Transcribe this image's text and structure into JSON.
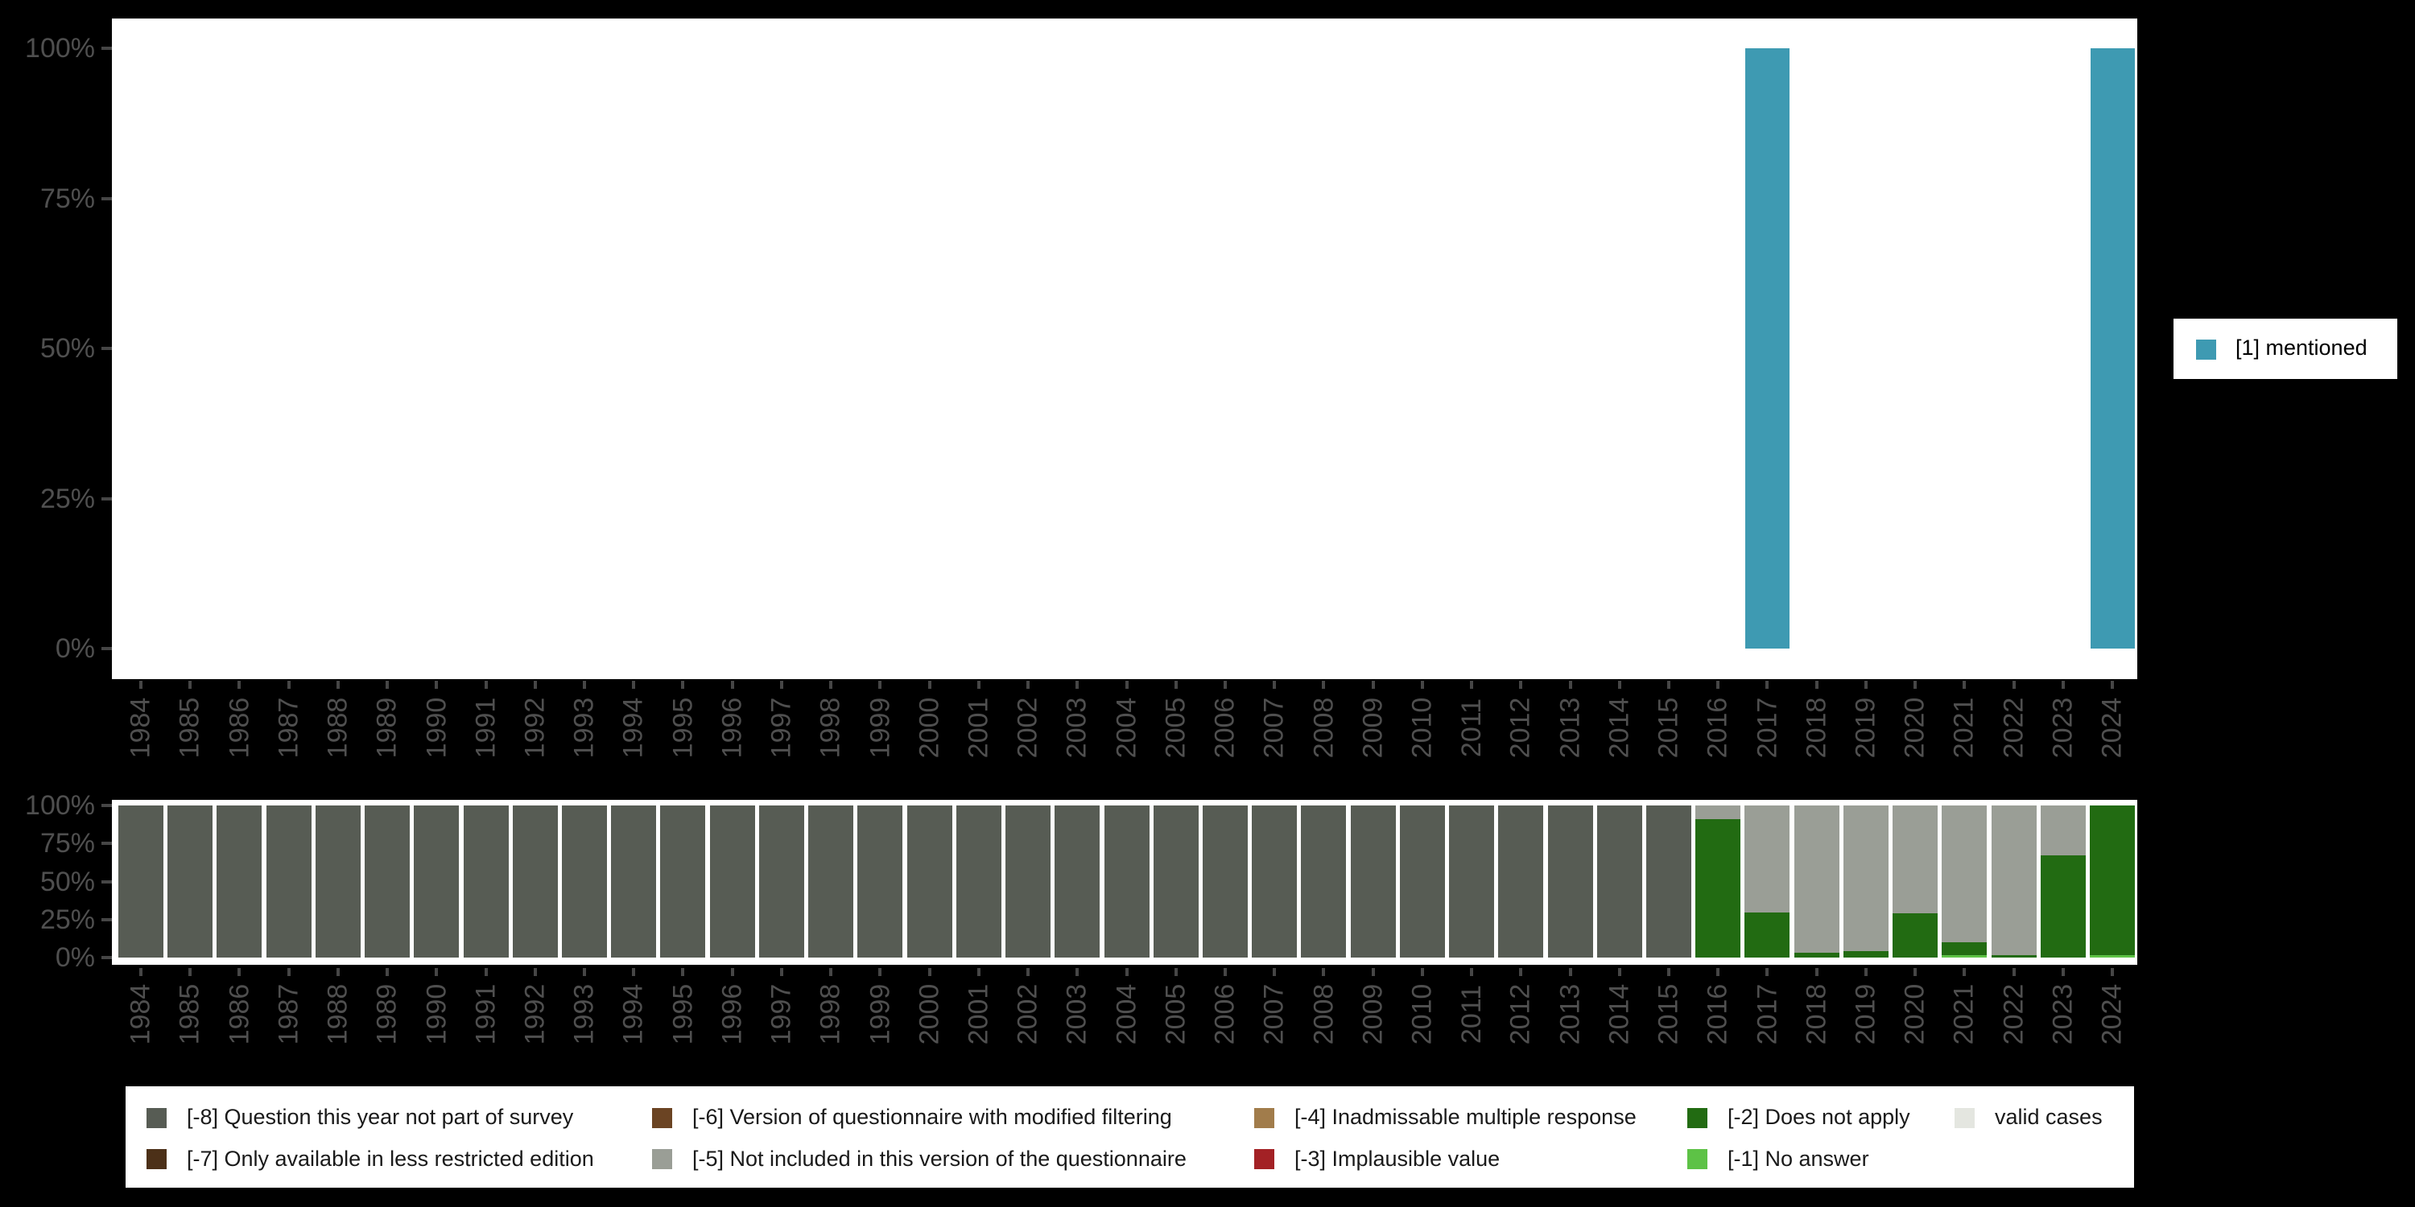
{
  "figure": {
    "background": "#000000",
    "panel_background": "#ffffff",
    "description": "Variable availability over survey years: share of respondents mentioning the item (top) and composition of missing-value codes (bottom)"
  },
  "axis": {
    "text_color": "#4f4f4f",
    "tick_color": "#464646",
    "y_tick_labels": [
      "0%",
      "25%",
      "50%",
      "75%",
      "100%"
    ],
    "y_tick_pcts": [
      0,
      25,
      50,
      75,
      100
    ]
  },
  "years": [
    1984,
    1985,
    1986,
    1987,
    1988,
    1989,
    1990,
    1991,
    1992,
    1993,
    1994,
    1995,
    1996,
    1997,
    1998,
    1999,
    2000,
    2001,
    2002,
    2003,
    2004,
    2005,
    2006,
    2007,
    2008,
    2009,
    2010,
    2011,
    2012,
    2013,
    2014,
    2015,
    2016,
    2017,
    2018,
    2019,
    2020,
    2021,
    2022,
    2023,
    2024
  ],
  "chart_data": [
    {
      "type": "bar",
      "title": "",
      "xlabel": "",
      "ylabel": "",
      "ylim": [
        0,
        100
      ],
      "grid": false,
      "legend_position": "right",
      "categories_ref": "years",
      "series": [
        {
          "name": "[1] mentioned",
          "color": "#3E9AB2",
          "values": [
            0,
            0,
            0,
            0,
            0,
            0,
            0,
            0,
            0,
            0,
            0,
            0,
            0,
            0,
            0,
            0,
            0,
            0,
            0,
            0,
            0,
            0,
            0,
            0,
            0,
            0,
            0,
            0,
            0,
            0,
            0,
            0,
            0,
            100,
            0,
            0,
            0,
            0,
            0,
            0,
            100
          ]
        }
      ]
    },
    {
      "type": "stacked-bar",
      "title": "",
      "xlabel": "",
      "ylabel": "",
      "ylim": [
        0,
        100
      ],
      "grid": false,
      "legend_position": "bottom",
      "categories_ref": "years",
      "stacking_order_bottom_to_top": [
        "valid",
        "-1",
        "-2",
        "-3",
        "-4",
        "-5",
        "-6",
        "-7",
        "-8"
      ],
      "stacks": [
        {
          "year": 1984,
          "segments": [
            [
              "-8",
              100
            ]
          ]
        },
        {
          "year": 1985,
          "segments": [
            [
              "-8",
              100
            ]
          ]
        },
        {
          "year": 1986,
          "segments": [
            [
              "-8",
              100
            ]
          ]
        },
        {
          "year": 1987,
          "segments": [
            [
              "-8",
              100
            ]
          ]
        },
        {
          "year": 1988,
          "segments": [
            [
              "-8",
              100
            ]
          ]
        },
        {
          "year": 1989,
          "segments": [
            [
              "-8",
              100
            ]
          ]
        },
        {
          "year": 1990,
          "segments": [
            [
              "-8",
              100
            ]
          ]
        },
        {
          "year": 1991,
          "segments": [
            [
              "-8",
              100
            ]
          ]
        },
        {
          "year": 1992,
          "segments": [
            [
              "-8",
              100
            ]
          ]
        },
        {
          "year": 1993,
          "segments": [
            [
              "-8",
              100
            ]
          ]
        },
        {
          "year": 1994,
          "segments": [
            [
              "-8",
              100
            ]
          ]
        },
        {
          "year": 1995,
          "segments": [
            [
              "-8",
              100
            ]
          ]
        },
        {
          "year": 1996,
          "segments": [
            [
              "-8",
              100
            ]
          ]
        },
        {
          "year": 1997,
          "segments": [
            [
              "-8",
              100
            ]
          ]
        },
        {
          "year": 1998,
          "segments": [
            [
              "-8",
              100
            ]
          ]
        },
        {
          "year": 1999,
          "segments": [
            [
              "-8",
              100
            ]
          ]
        },
        {
          "year": 2000,
          "segments": [
            [
              "-8",
              100
            ]
          ]
        },
        {
          "year": 2001,
          "segments": [
            [
              "-8",
              100
            ]
          ]
        },
        {
          "year": 2002,
          "segments": [
            [
              "-8",
              100
            ]
          ]
        },
        {
          "year": 2003,
          "segments": [
            [
              "-8",
              100
            ]
          ]
        },
        {
          "year": 2004,
          "segments": [
            [
              "-8",
              100
            ]
          ]
        },
        {
          "year": 2005,
          "segments": [
            [
              "-8",
              100
            ]
          ]
        },
        {
          "year": 2006,
          "segments": [
            [
              "-8",
              100
            ]
          ]
        },
        {
          "year": 2007,
          "segments": [
            [
              "-8",
              100
            ]
          ]
        },
        {
          "year": 2008,
          "segments": [
            [
              "-8",
              100
            ]
          ]
        },
        {
          "year": 2009,
          "segments": [
            [
              "-8",
              100
            ]
          ]
        },
        {
          "year": 2010,
          "segments": [
            [
              "-8",
              100
            ]
          ]
        },
        {
          "year": 2011,
          "segments": [
            [
              "-8",
              100
            ]
          ]
        },
        {
          "year": 2012,
          "segments": [
            [
              "-8",
              100
            ]
          ]
        },
        {
          "year": 2013,
          "segments": [
            [
              "-8",
              100
            ]
          ]
        },
        {
          "year": 2014,
          "segments": [
            [
              "-8",
              100
            ]
          ]
        },
        {
          "year": 2015,
          "segments": [
            [
              "-8",
              100
            ]
          ]
        },
        {
          "year": 2016,
          "segments": [
            [
              "-2",
              91
            ],
            [
              "-5",
              9
            ]
          ]
        },
        {
          "year": 2017,
          "segments": [
            [
              "-2",
              29.5
            ],
            [
              "-5",
              70.5
            ]
          ]
        },
        {
          "year": 2018,
          "segments": [
            [
              "-2",
              3
            ],
            [
              "-5",
              97
            ]
          ]
        },
        {
          "year": 2019,
          "segments": [
            [
              "-2",
              4
            ],
            [
              "-5",
              96
            ]
          ]
        },
        {
          "year": 2020,
          "segments": [
            [
              "-2",
              29
            ],
            [
              "-5",
              71
            ]
          ]
        },
        {
          "year": 2021,
          "segments": [
            [
              "-1",
              1.5
            ],
            [
              "-2",
              8.5
            ],
            [
              "-5",
              90
            ]
          ]
        },
        {
          "year": 2022,
          "segments": [
            [
              "-2",
              1.5
            ],
            [
              "-5",
              98.5
            ]
          ]
        },
        {
          "year": 2023,
          "segments": [
            [
              "-2",
              67
            ],
            [
              "-5",
              33
            ]
          ]
        },
        {
          "year": 2024,
          "segments": [
            [
              "-1",
              1.5
            ],
            [
              "-2",
              98.5
            ]
          ]
        }
      ]
    }
  ],
  "top_chart": {
    "legend_label": "[1] mentioned",
    "legend_color": "#3E9AB2"
  },
  "missing_categories": [
    {
      "key": "-8",
      "label": "[-8] Question this year not part of survey",
      "color": "#575C54"
    },
    {
      "key": "-7",
      "label": "[-7] Only available in less restricted edition",
      "color": "#4C3018"
    },
    {
      "key": "-6",
      "label": "[-6] Version of questionnaire with modified filtering",
      "color": "#6B4423"
    },
    {
      "key": "-5",
      "label": "[-5] Not included in this version of the questionnaire",
      "color": "#9A9E96"
    },
    {
      "key": "-4",
      "label": "[-4] Inadmissable multiple response",
      "color": "#A17C4B"
    },
    {
      "key": "-3",
      "label": "[-3] Implausible value",
      "color": "#A32125"
    },
    {
      "key": "-2",
      "label": "[-2] Does not apply",
      "color": "#226B12"
    },
    {
      "key": "-1",
      "label": "[-1] No answer",
      "color": "#5DC246"
    },
    {
      "key": "valid",
      "label": "valid cases",
      "color": "#E4E6E0"
    }
  ],
  "legend_layout": {
    "columns": [
      [
        "-8",
        "-7"
      ],
      [
        "-6",
        "-5"
      ],
      [
        "-4",
        "-3"
      ],
      [
        "-2",
        "-1"
      ],
      [
        "valid"
      ]
    ]
  }
}
